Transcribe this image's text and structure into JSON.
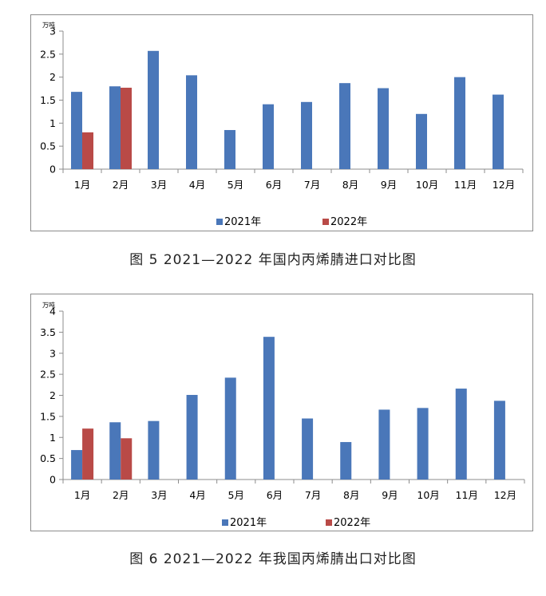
{
  "chart_data": [
    {
      "type": "bar",
      "title": "图 5  2021—2022 年国内丙烯腈进口对比图",
      "unit": "万吨",
      "categories": [
        "1月",
        "2月",
        "3月",
        "4月",
        "5月",
        "6月",
        "7月",
        "8月",
        "9月",
        "10月",
        "11月",
        "12月"
      ],
      "series": [
        {
          "name": "2021年",
          "color": "#4a77b9",
          "values": [
            1.68,
            1.8,
            2.57,
            2.04,
            0.85,
            1.41,
            1.46,
            1.87,
            1.76,
            1.2,
            2.0,
            1.62
          ]
        },
        {
          "name": "2022年",
          "color": "#b94a47",
          "values": [
            0.8,
            1.77,
            null,
            null,
            null,
            null,
            null,
            null,
            null,
            null,
            null,
            null
          ]
        }
      ],
      "ylim": [
        0,
        3
      ],
      "yticks": [
        "0",
        "0.5",
        "1",
        "1.5",
        "2",
        "2.5",
        "3"
      ],
      "grid": false,
      "legend": "bottom"
    },
    {
      "type": "bar",
      "title": "图 6  2021—2022 年我国丙烯腈出口对比图",
      "unit": "万吨",
      "categories": [
        "1月",
        "2月",
        "3月",
        "4月",
        "5月",
        "6月",
        "7月",
        "8月",
        "9月",
        "10月",
        "11月",
        "12月"
      ],
      "series": [
        {
          "name": "2021年",
          "color": "#4a77b9",
          "values": [
            0.7,
            1.36,
            1.39,
            2.01,
            2.42,
            3.39,
            1.45,
            0.89,
            1.66,
            1.7,
            2.16,
            1.87
          ]
        },
        {
          "name": "2022年",
          "color": "#b94a47",
          "values": [
            1.21,
            0.98,
            null,
            null,
            null,
            null,
            null,
            null,
            null,
            null,
            null,
            null
          ]
        }
      ],
      "ylim": [
        0,
        4
      ],
      "yticks": [
        "0",
        "0.5",
        "1",
        "1.5",
        "2",
        "2.5",
        "3",
        "3.5",
        "4"
      ],
      "grid": false,
      "legend": "bottom"
    }
  ]
}
